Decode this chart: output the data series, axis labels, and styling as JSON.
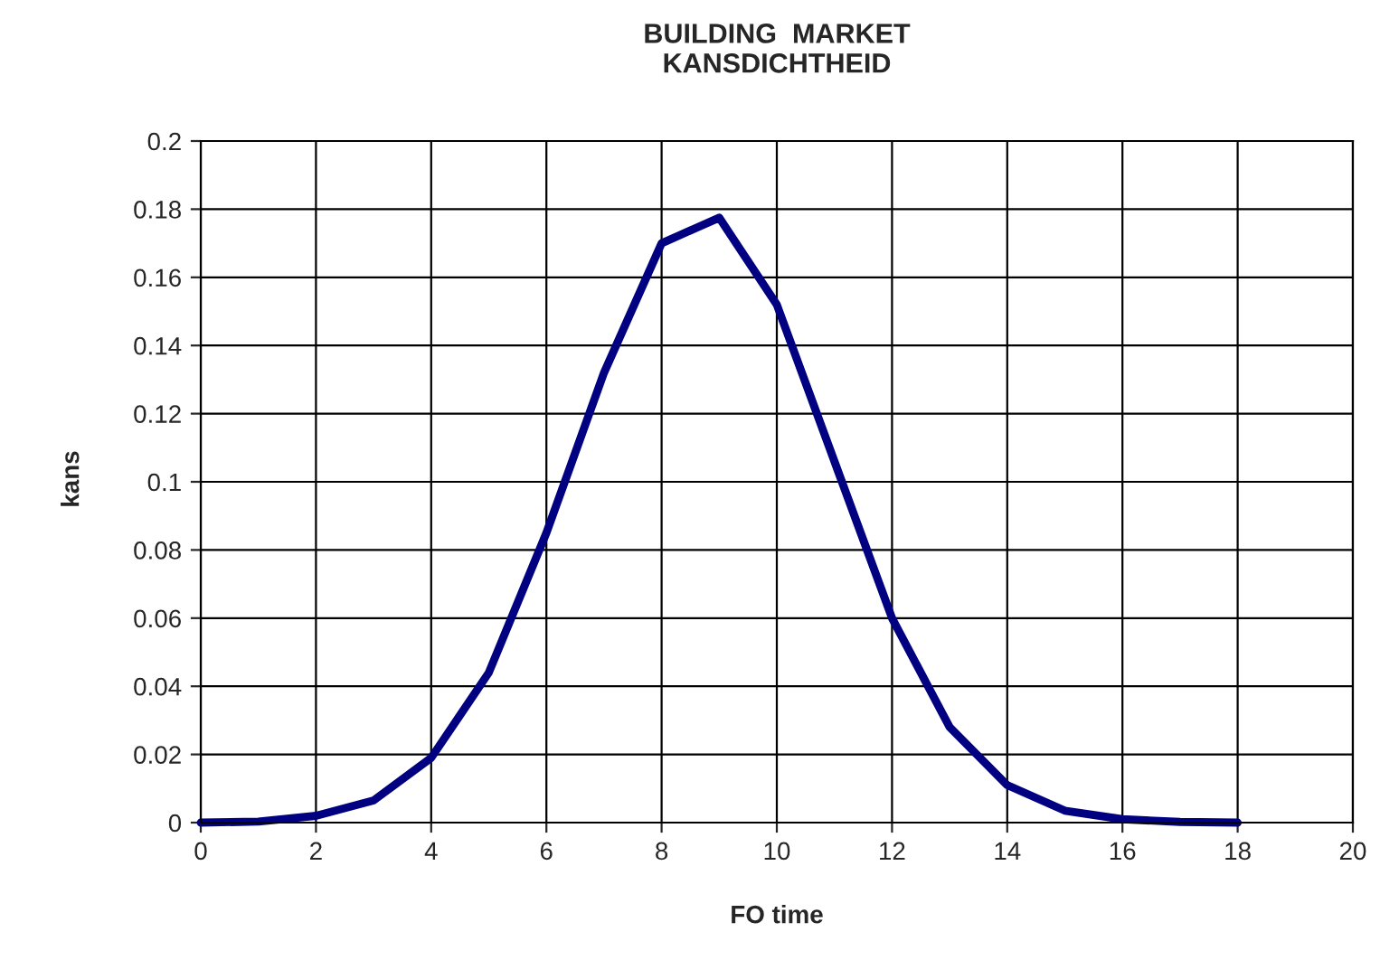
{
  "chart_data": {
    "type": "line",
    "title": "BUILDING  MARKET\nKANSDICHTHEID",
    "xlabel": "FO time",
    "ylabel": "kans",
    "x": [
      0,
      1,
      2,
      3,
      4,
      5,
      6,
      7,
      8,
      9,
      10,
      11,
      12,
      13,
      14,
      15,
      16,
      17,
      18
    ],
    "series": [
      {
        "color": "#000080",
        "values": [
          0.0,
          0.0003,
          0.002,
          0.0065,
          0.019,
          0.044,
          0.085,
          0.132,
          0.17,
          0.1775,
          0.152,
          0.106,
          0.06,
          0.028,
          0.011,
          0.0035,
          0.001,
          0.0002,
          0.0
        ]
      }
    ],
    "xlim": [
      0,
      20
    ],
    "xticks": [
      0,
      2,
      4,
      6,
      8,
      10,
      12,
      14,
      16,
      18,
      20
    ],
    "ylim": [
      0,
      0.2
    ],
    "yticks": [
      0,
      0.02,
      0.04,
      0.06,
      0.08,
      0.1,
      0.12,
      0.14,
      0.16,
      0.18,
      0.2
    ],
    "grid": true,
    "marker": "none",
    "line_style": "solid"
  }
}
